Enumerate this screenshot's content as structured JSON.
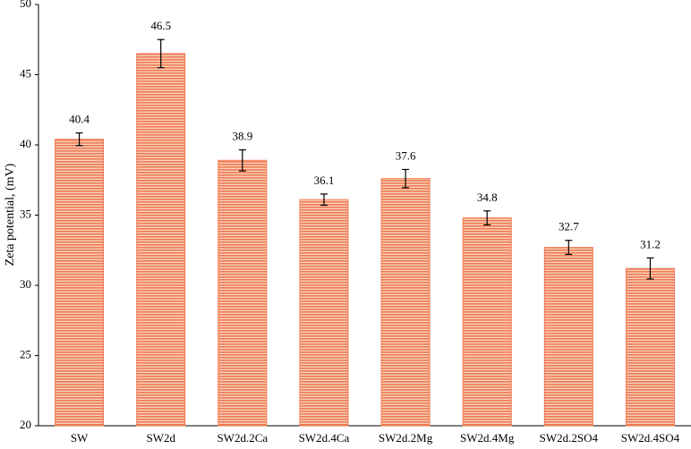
{
  "chart_data": {
    "type": "bar",
    "y_label": "Zeta potential, (mV)",
    "categories": [
      "SW",
      "SW2d",
      "SW2d.2Ca",
      "SW2d.4Ca",
      "SW2d.2Mg",
      "SW2d.4Mg",
      "SW2d.2SO4",
      "SW2d.4SO4"
    ],
    "values": [
      40.4,
      46.5,
      38.9,
      36.1,
      37.6,
      34.8,
      32.7,
      31.2
    ],
    "errors": [
      0.45,
      1.0,
      0.75,
      0.4,
      0.65,
      0.5,
      0.5,
      0.75
    ],
    "color": "#ee7a52",
    "ylim": [
      20,
      50
    ],
    "yticks": [
      20,
      25,
      30,
      35,
      40,
      45,
      50
    ]
  }
}
